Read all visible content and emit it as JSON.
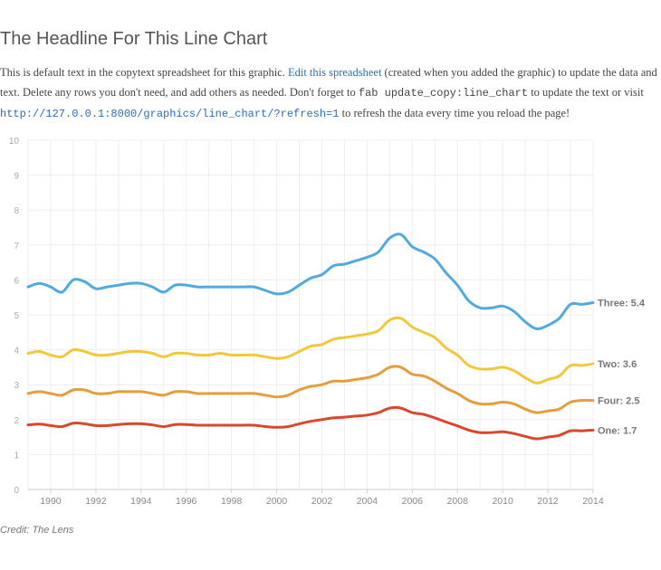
{
  "headline": "The Headline For This Line Chart",
  "copy": {
    "text_1": "This is default text in the copytext spreadsheet for this graphic. ",
    "link_1": "Edit this spreadsheet",
    "text_2": " (created when you added the graphic) to update the data and text. Delete any rows you don't need, and add others as needed. Don't forget to ",
    "code_1": "fab update_copy:line_chart",
    "text_3": " to update the text or visit ",
    "link_2": "http://127.0.0.1:8000/graphics/line_chart/?refresh=1",
    "text_4": " to refresh the data every time you reload the page!"
  },
  "credit": "Credit: The Lens",
  "chart_data": {
    "type": "line",
    "title": "The Headline For This Line Chart",
    "xlabel": "",
    "ylabel": "",
    "xlim": [
      1989,
      2014
    ],
    "ylim": [
      0,
      10
    ],
    "x_ticks": [
      "1990",
      "1992",
      "1994",
      "1996",
      "1998",
      "2000",
      "2002",
      "2004",
      "2006",
      "2008",
      "2010",
      "2012",
      "2014"
    ],
    "y_ticks": [
      "0",
      "1",
      "2",
      "3",
      "4",
      "5",
      "6",
      "7",
      "8",
      "9",
      "10"
    ],
    "grid": true,
    "legend": "end-of-line labels",
    "x": [
      1989,
      1989.5,
      1990,
      1990.5,
      1991,
      1991.5,
      1992,
      1992.5,
      1993,
      1993.5,
      1994,
      1994.5,
      1995,
      1995.5,
      1996,
      1996.5,
      1997,
      1997.5,
      1998,
      1998.5,
      1999,
      1999.5,
      2000,
      2000.5,
      2001,
      2001.5,
      2002,
      2002.5,
      2003,
      2003.5,
      2004,
      2004.5,
      2005,
      2005.5,
      2006,
      2006.5,
      2007,
      2007.5,
      2008,
      2008.5,
      2009,
      2009.5,
      2010,
      2010.5,
      2011,
      2011.5,
      2012,
      2012.5,
      2013,
      2013.5,
      2014
    ],
    "series": [
      {
        "name": "Three",
        "color": "#51aadf",
        "label": "Three: 5.4",
        "values": [
          5.8,
          5.9,
          5.8,
          5.65,
          6.0,
          5.95,
          5.75,
          5.8,
          5.85,
          5.9,
          5.9,
          5.8,
          5.65,
          5.85,
          5.85,
          5.8,
          5.8,
          5.8,
          5.8,
          5.8,
          5.8,
          5.7,
          5.6,
          5.65,
          5.85,
          6.05,
          6.15,
          6.4,
          6.45,
          6.55,
          6.65,
          6.8,
          7.2,
          7.3,
          6.95,
          6.8,
          6.6,
          6.2,
          5.85,
          5.4,
          5.2,
          5.2,
          5.25,
          5.1,
          4.8,
          4.6,
          4.7,
          4.9,
          5.3,
          5.3,
          5.35
        ]
      },
      {
        "name": "Two",
        "color": "#f3c73c",
        "label": "Two: 3.6",
        "values": [
          3.9,
          3.95,
          3.85,
          3.8,
          4.0,
          3.95,
          3.85,
          3.85,
          3.9,
          3.95,
          3.95,
          3.9,
          3.8,
          3.9,
          3.9,
          3.85,
          3.85,
          3.9,
          3.85,
          3.85,
          3.85,
          3.8,
          3.75,
          3.8,
          3.95,
          4.1,
          4.15,
          4.3,
          4.35,
          4.4,
          4.45,
          4.55,
          4.85,
          4.9,
          4.65,
          4.5,
          4.35,
          4.05,
          3.85,
          3.55,
          3.45,
          3.45,
          3.5,
          3.4,
          3.2,
          3.05,
          3.15,
          3.25,
          3.55,
          3.55,
          3.6
        ]
      },
      {
        "name": "Four",
        "color": "#e69d3b",
        "label": "Four: 2.5",
        "values": [
          2.75,
          2.8,
          2.75,
          2.7,
          2.85,
          2.85,
          2.75,
          2.75,
          2.8,
          2.8,
          2.8,
          2.75,
          2.7,
          2.8,
          2.8,
          2.75,
          2.75,
          2.75,
          2.75,
          2.75,
          2.75,
          2.7,
          2.65,
          2.7,
          2.85,
          2.95,
          3.0,
          3.1,
          3.1,
          3.15,
          3.2,
          3.3,
          3.5,
          3.5,
          3.3,
          3.25,
          3.1,
          2.9,
          2.75,
          2.55,
          2.45,
          2.45,
          2.5,
          2.45,
          2.3,
          2.2,
          2.25,
          2.3,
          2.5,
          2.55,
          2.55
        ]
      },
      {
        "name": "One",
        "color": "#d9482c",
        "label": "One: 1.7",
        "values": [
          1.85,
          1.87,
          1.83,
          1.8,
          1.9,
          1.88,
          1.83,
          1.83,
          1.86,
          1.88,
          1.88,
          1.85,
          1.8,
          1.86,
          1.86,
          1.84,
          1.84,
          1.84,
          1.84,
          1.84,
          1.84,
          1.8,
          1.78,
          1.8,
          1.88,
          1.95,
          2.0,
          2.05,
          2.07,
          2.1,
          2.13,
          2.2,
          2.33,
          2.33,
          2.2,
          2.15,
          2.05,
          1.93,
          1.82,
          1.7,
          1.63,
          1.63,
          1.65,
          1.6,
          1.52,
          1.45,
          1.5,
          1.55,
          1.68,
          1.68,
          1.7
        ]
      }
    ]
  },
  "colors": {
    "grid": "#eeeeee",
    "axis": "#cccccc",
    "tick_text": "#aaaaaa",
    "x_tick_text": "#888888",
    "label_text": "#777777"
  }
}
